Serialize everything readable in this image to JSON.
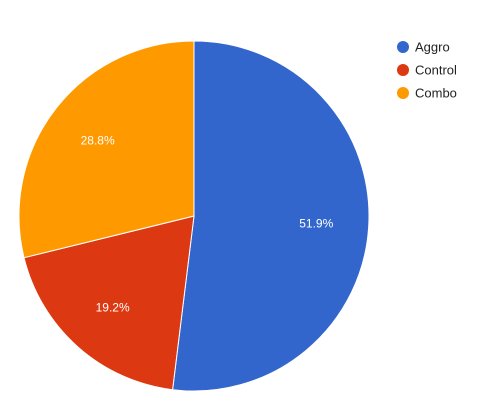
{
  "chart_data": {
    "type": "pie",
    "title": "",
    "categories": [
      "Aggro",
      "Control",
      "Combo"
    ],
    "values": [
      51.9,
      19.2,
      28.8
    ],
    "value_labels": [
      "51.9%",
      "19.2%",
      "28.8%"
    ],
    "colors": [
      "#3366cc",
      "#dc3912",
      "#ff9900"
    ],
    "start": "top, clockwise",
    "legend_position": "right"
  }
}
